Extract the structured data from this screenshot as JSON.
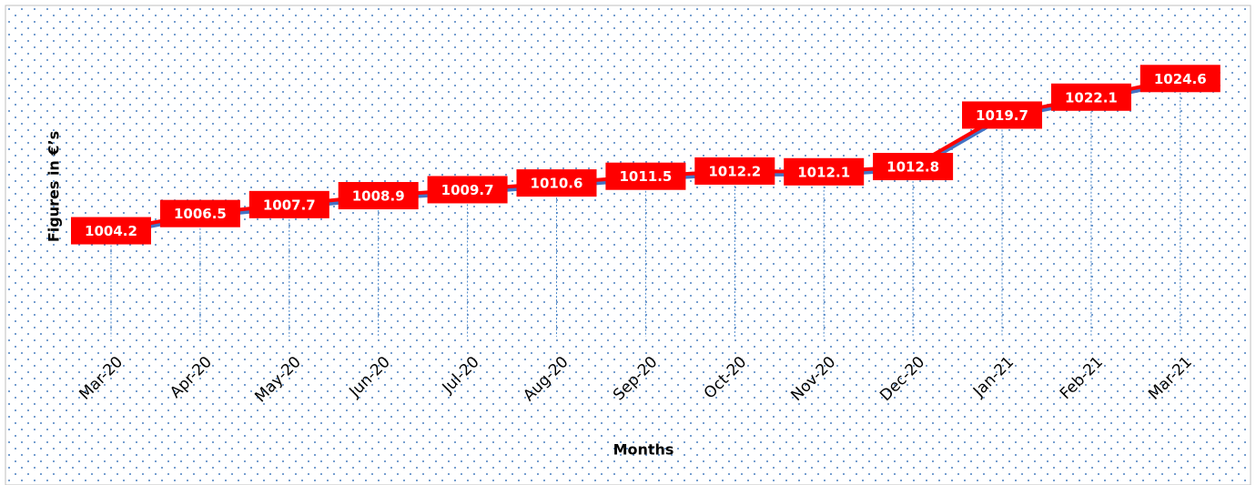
{
  "chart_data": {
    "type": "line",
    "x_label": "Months",
    "y_label": "Figures in €’s",
    "categories": [
      "Mar-20",
      "Apr-20",
      "May-20",
      "Jun-20",
      "Jul-20",
      "Aug-20",
      "Sep-20",
      "Oct-20",
      "Nov-20",
      "Dec-20",
      "Jan-21",
      "Feb-21",
      "Mar-21"
    ],
    "values": [
      1004.2,
      1006.5,
      1007.7,
      1008.9,
      1009.7,
      1010.6,
      1011.5,
      1012.2,
      1012.1,
      1012.8,
      1019.7,
      1022.1,
      1024.6
    ],
    "color": "#ff0000",
    "ylim": [
      990,
      1030
    ]
  }
}
